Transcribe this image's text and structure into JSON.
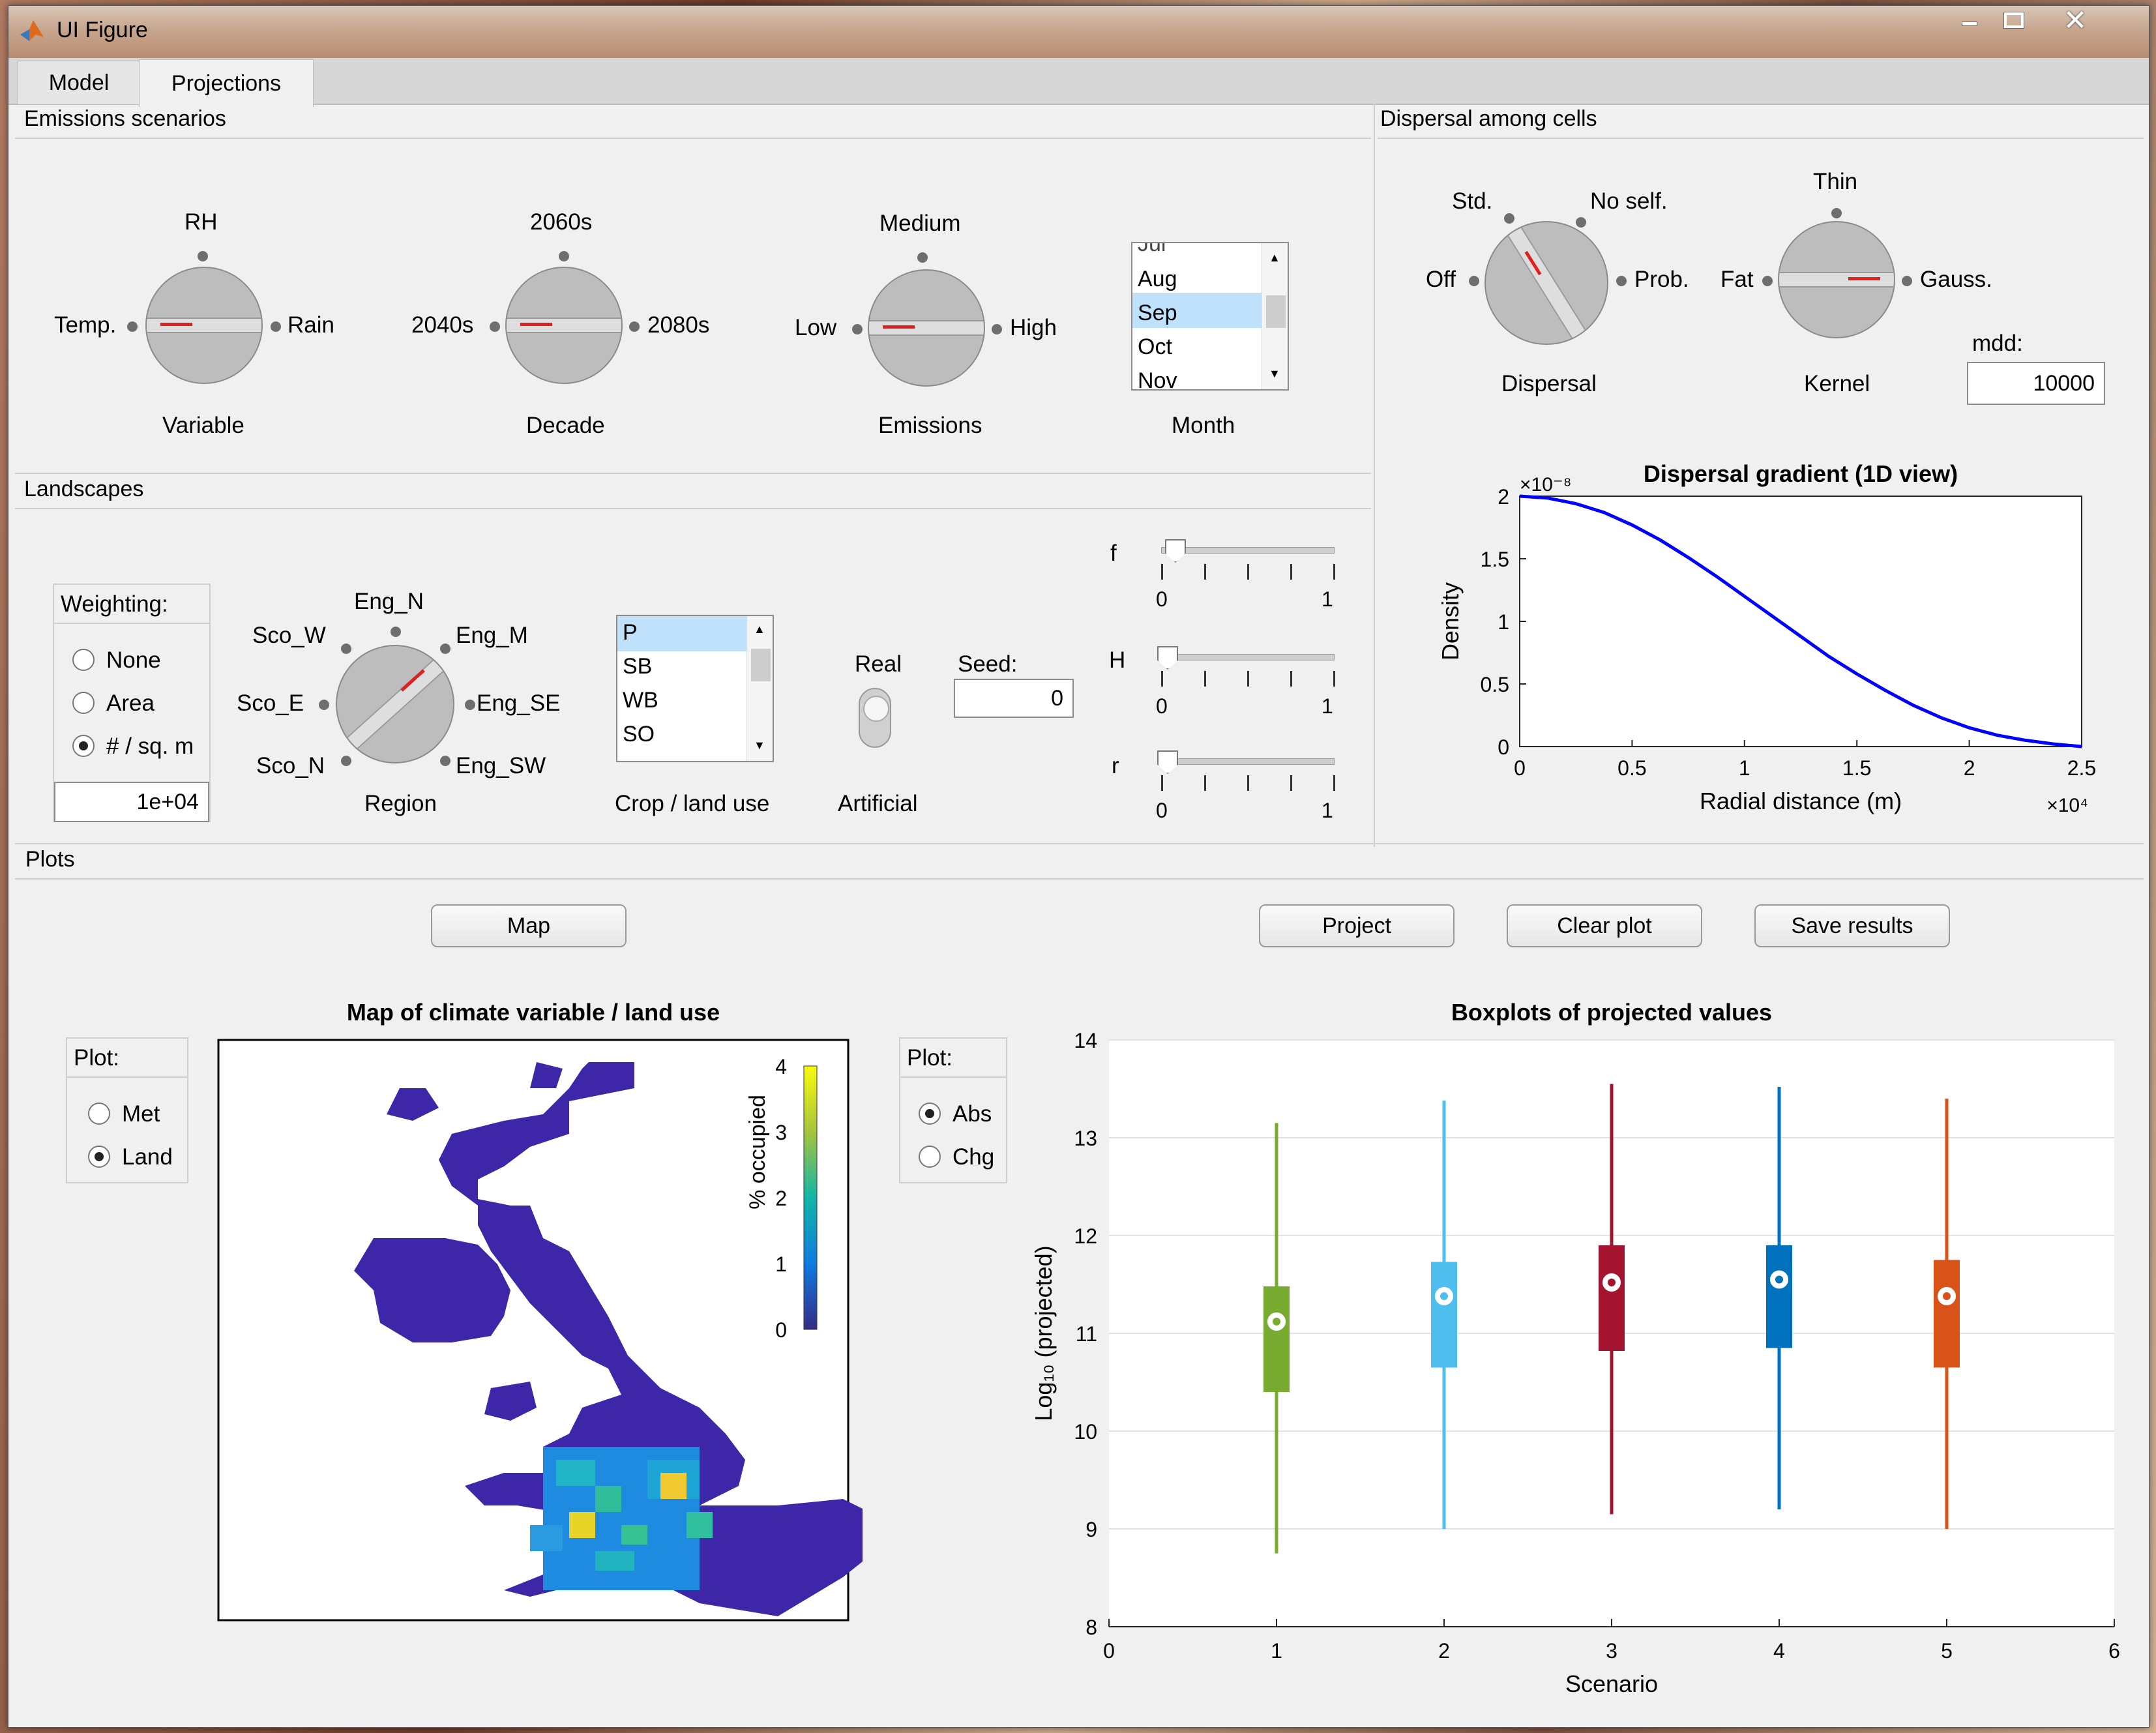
{
  "window": {
    "title": "UI Figure"
  },
  "tabs": [
    {
      "label": "Model"
    },
    {
      "label": "Projections"
    }
  ],
  "emissions": {
    "title": "Emissions scenarios",
    "variable": {
      "top": "RH",
      "left": "Temp.",
      "right": "Rain",
      "label": "Variable"
    },
    "decade": {
      "top": "2060s",
      "left": "2040s",
      "right": "2080s",
      "label": "Decade"
    },
    "emissions": {
      "top": "Medium",
      "left": "Low",
      "right": "High",
      "label": "Emissions"
    },
    "month": {
      "items": [
        "Aug",
        "Sep",
        "Oct",
        "Nov"
      ],
      "selected": "Sep",
      "label": "Month"
    }
  },
  "dispersal": {
    "title": "Dispersal among cells",
    "dispersal_knob": {
      "left": "Off",
      "top_left": "Std.",
      "top_right": "No self.",
      "right": "Prob.",
      "label": "Dispersal"
    },
    "kernel_knob": {
      "left": "Fat",
      "top": "Thin",
      "right": "Gauss.",
      "label": "Kernel"
    },
    "mdd": {
      "label": "mdd:",
      "value": "10000"
    }
  },
  "landscapes": {
    "title": "Landscapes",
    "weighting": {
      "title": "Weighting:",
      "options": [
        "None",
        "Area",
        "# / sq. m"
      ],
      "selected": "# / sq. m",
      "value": "1e+04"
    },
    "region": {
      "labels": {
        "n": "Eng_N",
        "nw": "Sco_W",
        "ne": "Eng_M",
        "w": "Sco_E",
        "e": "Eng_SE",
        "sw": "Sco_N",
        "se": "Eng_SW"
      },
      "label": "Region"
    },
    "crop": {
      "items": [
        "P",
        "SB",
        "WB",
        "SO"
      ],
      "selected": "P",
      "label": "Crop / land use"
    },
    "switch": {
      "top": "Real",
      "bottom": "Artificial"
    },
    "seed": {
      "label": "Seed:",
      "value": "0"
    },
    "sliders": [
      {
        "name": "f",
        "min": "0",
        "max": "1",
        "value": 0.05
      },
      {
        "name": "H",
        "min": "0",
        "max": "1",
        "value": 0.0
      },
      {
        "name": "r",
        "min": "0",
        "max": "1",
        "value": 0.0
      }
    ]
  },
  "plots": {
    "title": "Plots",
    "buttons": {
      "map": "Map",
      "project": "Project",
      "clear": "Clear plot",
      "save": "Save results"
    },
    "map_plot_group": {
      "title": "Plot:",
      "options": [
        "Met",
        "Land"
      ],
      "selected": "Land"
    },
    "box_plot_group": {
      "title": "Plot:",
      "options": [
        "Abs",
        "Chg"
      ],
      "selected": "Abs"
    }
  },
  "chart_data": [
    {
      "type": "line",
      "title": "Dispersal gradient (1D view)",
      "xlabel": "Radial distance (m)",
      "ylabel": "Density",
      "x_exponent": "×10⁴",
      "y_exponent": "×10⁻⁸",
      "xlim": [
        0,
        2.5
      ],
      "ylim": [
        0,
        2
      ],
      "xticks": [
        "0",
        "0.5",
        "1",
        "1.5",
        "2",
        "2.5"
      ],
      "yticks": [
        "0",
        "0.5",
        "1",
        "1.5",
        "2"
      ],
      "color": "#0000ff",
      "series": [
        {
          "x": [
            0,
            0.125,
            0.25,
            0.375,
            0.5,
            0.625,
            0.75,
            0.875,
            1.0,
            1.125,
            1.25,
            1.375,
            1.5,
            1.625,
            1.75,
            1.875,
            2.0,
            2.125,
            2.25,
            2.375,
            2.5
          ],
          "values": [
            2.0,
            1.985,
            1.94,
            1.87,
            1.77,
            1.65,
            1.51,
            1.36,
            1.2,
            1.04,
            0.88,
            0.72,
            0.58,
            0.45,
            0.33,
            0.23,
            0.15,
            0.09,
            0.05,
            0.02,
            0.0
          ]
        }
      ]
    },
    {
      "type": "heatmap",
      "title": "Map of climate variable / land use",
      "colorbar_label": "% occupied",
      "colorbar_ticks": [
        "0",
        "1",
        "2",
        "3",
        "4"
      ],
      "range": [
        0,
        4
      ]
    },
    {
      "type": "boxplot",
      "title": "Boxplots of projected values",
      "xlabel": "Scenario",
      "ylabel": "Log₁₀ (projected)",
      "xlim": [
        0,
        6
      ],
      "ylim": [
        8,
        14
      ],
      "xticks": [
        "0",
        "1",
        "2",
        "3",
        "4",
        "5",
        "6"
      ],
      "yticks": [
        "8",
        "9",
        "10",
        "11",
        "12",
        "13",
        "14"
      ],
      "boxes": [
        {
          "x": 1,
          "min": 8.75,
          "q1": 10.4,
          "median": 11.12,
          "q3": 11.48,
          "max": 13.15,
          "color": "#77ac30"
        },
        {
          "x": 2,
          "min": 9.0,
          "q1": 10.65,
          "median": 11.38,
          "q3": 11.73,
          "max": 13.38,
          "color": "#4dbeee"
        },
        {
          "x": 3,
          "min": 9.15,
          "q1": 10.82,
          "median": 11.52,
          "q3": 11.9,
          "max": 13.55,
          "color": "#a2142f"
        },
        {
          "x": 4,
          "min": 9.2,
          "q1": 10.85,
          "median": 11.55,
          "q3": 11.9,
          "max": 13.52,
          "color": "#0072bd"
        },
        {
          "x": 5,
          "min": 9.0,
          "q1": 10.65,
          "median": 11.38,
          "q3": 11.75,
          "max": 13.4,
          "color": "#d95319"
        }
      ]
    }
  ]
}
